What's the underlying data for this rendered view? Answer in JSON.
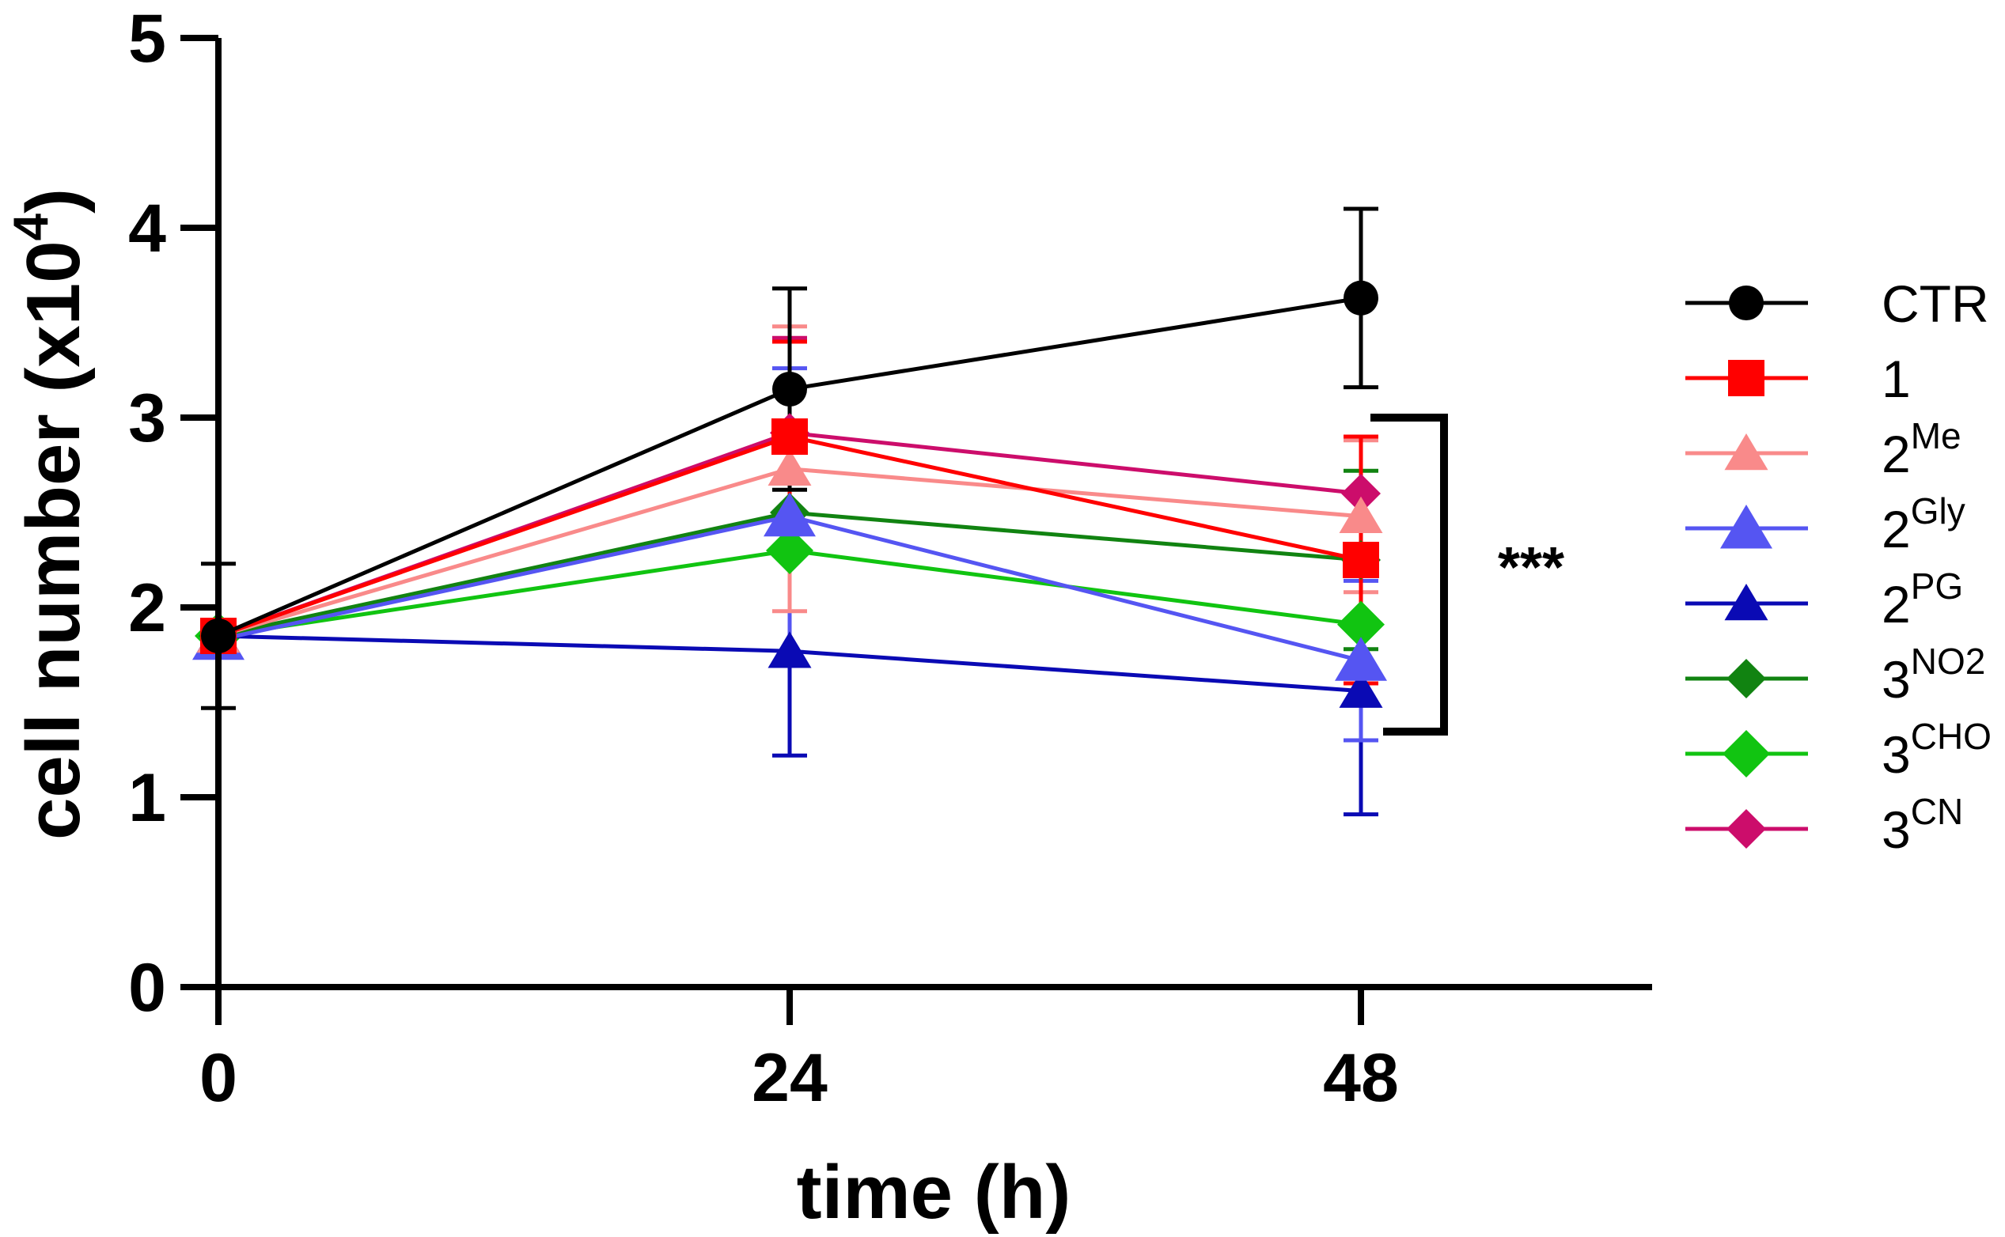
{
  "chart_data": {
    "type": "line",
    "xlabel": "time (h)",
    "ylabel": "cell number (x10",
    "ylabel_sup": "4",
    "ylabel_end": ")",
    "x": [
      0,
      24,
      48
    ],
    "xtick_labels": [
      "0",
      "24",
      "48"
    ],
    "yticks": [
      0,
      1,
      2,
      3,
      4,
      5
    ],
    "ytick_labels": [
      "0",
      "1",
      "2",
      "3",
      "4",
      "5"
    ],
    "xlim": [
      0,
      60
    ],
    "ylim": [
      0,
      5
    ],
    "significance": "***",
    "series": [
      {
        "key": "ctr",
        "name": "CTR",
        "sup": "",
        "color": "#000000",
        "marker": "circle",
        "values": [
          1.85,
          3.15,
          3.63
        ],
        "errors": [
          0.38,
          0.53,
          0.47
        ]
      },
      {
        "key": "s1",
        "name": "1",
        "sup": "",
        "color": "#ff0000",
        "marker": "square",
        "values": [
          1.85,
          2.9,
          2.25
        ],
        "errors": [
          0.0,
          0.5,
          0.65
        ]
      },
      {
        "key": "s2me",
        "name": "2",
        "sup": "Me",
        "color": "#f98a8a",
        "marker": "triangle",
        "values": [
          1.85,
          2.73,
          2.48
        ],
        "errors": [
          0.0,
          0.75,
          0.4
        ]
      },
      {
        "key": "s2gly",
        "name": "2",
        "sup": "Gly",
        "color": "#5555f2",
        "marker": "triangle-large",
        "values": [
          1.83,
          2.48,
          1.72
        ],
        "errors": [
          0.0,
          0.78,
          0.42
        ]
      },
      {
        "key": "s2pg",
        "name": "2",
        "sup": "PG",
        "color": "#0a0ab4",
        "marker": "triangle",
        "values": [
          1.85,
          1.77,
          1.56
        ],
        "errors": [
          0.0,
          0.55,
          0.65
        ]
      },
      {
        "key": "s3no2",
        "name": "3",
        "sup": "NO2",
        "color": "#118311",
        "marker": "diamond",
        "values": [
          1.85,
          2.5,
          2.25
        ],
        "errors": [
          0.0,
          0.0,
          0.47
        ]
      },
      {
        "key": "s3cho",
        "name": "3",
        "sup": "CHO",
        "color": "#11c411",
        "marker": "diamond-large",
        "values": [
          1.85,
          2.3,
          1.91
        ],
        "errors": [
          0.0,
          0.0,
          0.0
        ]
      },
      {
        "key": "s3cn",
        "name": "3",
        "sup": "CN",
        "color": "#cc0d6b",
        "marker": "diamond",
        "values": [
          1.85,
          2.92,
          2.6
        ],
        "errors": [
          0.0,
          0.5,
          0.0
        ]
      }
    ]
  }
}
